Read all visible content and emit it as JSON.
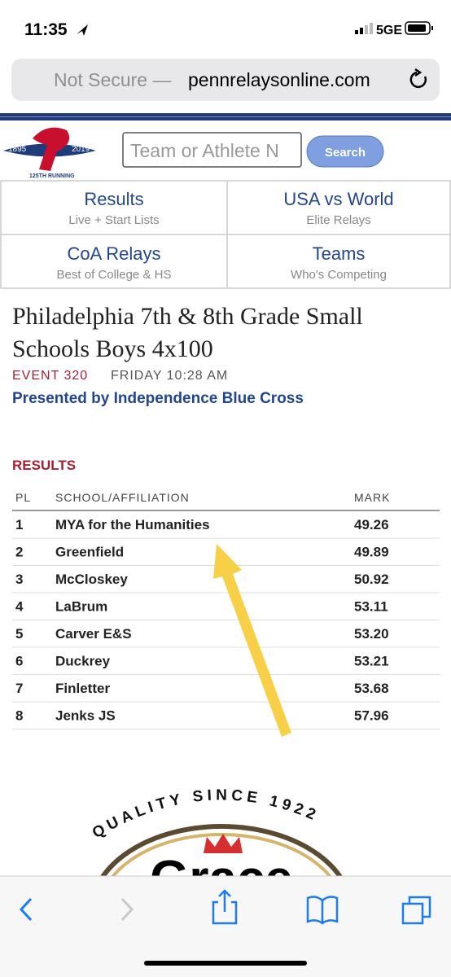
{
  "status_bar": {
    "time": "11:35",
    "network": "5GE"
  },
  "address_bar": {
    "security": "Not Secure —",
    "url": "pennrelaysonline.com"
  },
  "logo": {
    "year_start": "1895",
    "year_end": "2019",
    "caption": "125TH RUNNING"
  },
  "search": {
    "placeholder": "Team or Athlete N",
    "button": "Search"
  },
  "nav": [
    {
      "title": "Results",
      "subtitle": "Live + Start Lists"
    },
    {
      "title": "USA vs World",
      "subtitle": "Elite Relays"
    },
    {
      "title": "CoA Relays",
      "subtitle": "Best of College & HS"
    },
    {
      "title": "Teams",
      "subtitle": "Who's Competing"
    }
  ],
  "event": {
    "title_line1": "Philadelphia 7th & 8th Grade Small",
    "title_line2": "Schools Boys 4x100",
    "number": "EVENT 320",
    "time": "FRIDAY 10:28 AM",
    "sponsor": "Presented by Independence Blue Cross"
  },
  "results": {
    "heading": "RESULTS",
    "columns": [
      "PL",
      "SCHOOL/AFFILIATION",
      "MARK"
    ],
    "rows": [
      [
        "1",
        "MYA for the Humanities",
        "49.26"
      ],
      [
        "2",
        "Greenfield",
        "49.89"
      ],
      [
        "3",
        "McCloskey",
        "50.92"
      ],
      [
        "4",
        "LaBrum",
        "53.11"
      ],
      [
        "5",
        "Carver E&S",
        "53.20"
      ],
      [
        "6",
        "Duckrey",
        "53.21"
      ],
      [
        "7",
        "Finletter",
        "53.68"
      ],
      [
        "8",
        "Jenks JS",
        "57.96"
      ]
    ]
  },
  "ad": {
    "tagline": "QUALITY SINCE 1922",
    "brand": "Grace"
  }
}
